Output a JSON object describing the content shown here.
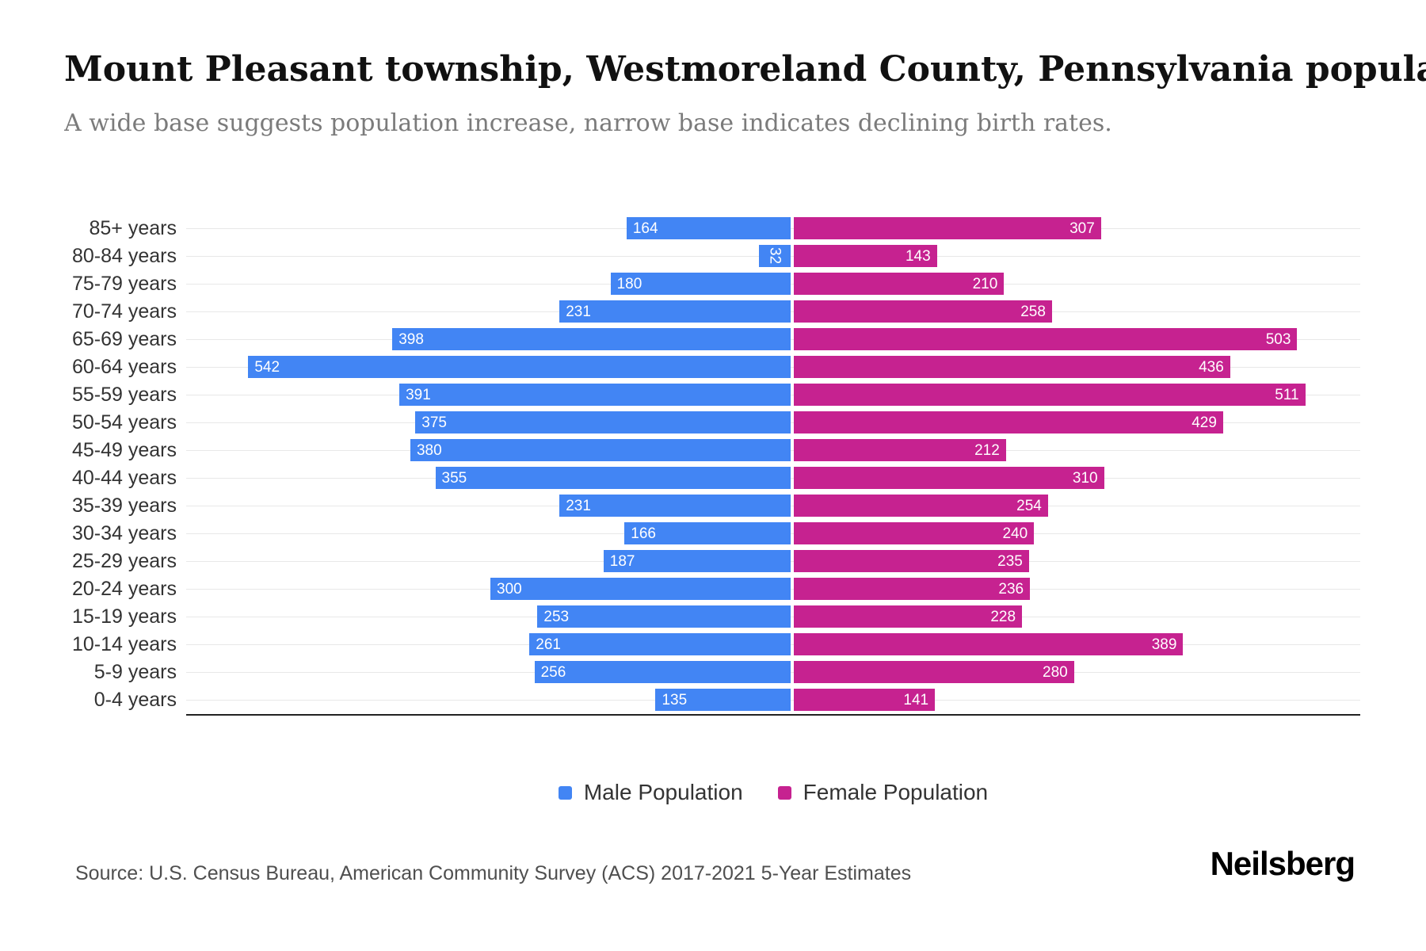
{
  "header": {
    "title": "Mount Pleasant township, Westmoreland County, Pennsylvania population py",
    "subtitle": "A wide base suggests population increase, narrow base indicates declining birth rates."
  },
  "chart_data": {
    "type": "bar",
    "variant": "population-pyramid",
    "orientation": "horizontal",
    "categories": [
      "85+ years",
      "80-84 years",
      "75-79 years",
      "70-74 years",
      "65-69 years",
      "60-64 years",
      "55-59 years",
      "50-54 years",
      "45-49 years",
      "40-44 years",
      "35-39 years",
      "30-34 years",
      "25-29 years",
      "20-24 years",
      "15-19 years",
      "10-14 years",
      "5-9 years",
      "0-4 years"
    ],
    "series": [
      {
        "name": "Male Population",
        "side": "left",
        "color": "#4285F4",
        "values": [
          164,
          32,
          180,
          231,
          398,
          542,
          391,
          375,
          380,
          355,
          231,
          166,
          187,
          300,
          253,
          261,
          256,
          135
        ]
      },
      {
        "name": "Female Population",
        "side": "right",
        "color": "#C62290",
        "values": [
          307,
          143,
          210,
          258,
          503,
          436,
          511,
          429,
          212,
          310,
          254,
          240,
          235,
          236,
          228,
          389,
          280,
          141
        ]
      }
    ],
    "side_axis_max": 566,
    "grid": true,
    "value_labels": "inside-end",
    "legend_position": "bottom"
  },
  "footer": {
    "source": "Source: U.S. Census Bureau, American Community Survey (ACS) 2017-2021 5-Year Estimates",
    "brand": "Neilsberg"
  }
}
